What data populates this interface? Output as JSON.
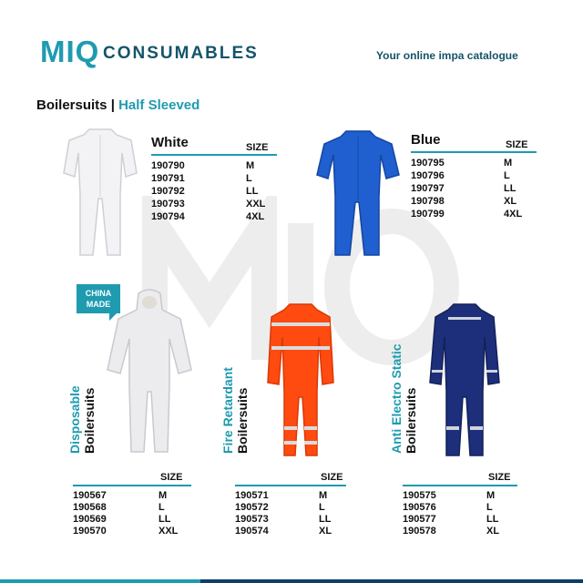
{
  "brand": {
    "logo_mark": "MIQ",
    "logo_text": "CONSUMABLES",
    "tagline": "Your online impa catalogue"
  },
  "heading": {
    "main": "Boilersuits",
    "separator": " | ",
    "sub": "Half Sleeved"
  },
  "white": {
    "title": "White",
    "size_header": "SIZE",
    "rows": [
      {
        "code": "190790",
        "size": "M"
      },
      {
        "code": "190791",
        "size": "L"
      },
      {
        "code": "190792",
        "size": "LL"
      },
      {
        "code": "190793",
        "size": "XXL"
      },
      {
        "code": "190794",
        "size": "4XL"
      }
    ]
  },
  "blue": {
    "title": "Blue",
    "size_header": "SIZE",
    "rows": [
      {
        "code": "190795",
        "size": "M"
      },
      {
        "code": "190796",
        "size": "L"
      },
      {
        "code": "190797",
        "size": "LL"
      },
      {
        "code": "190798",
        "size": "XL"
      },
      {
        "code": "190799",
        "size": "4XL"
      }
    ]
  },
  "disposable": {
    "label_top": "Disposable",
    "label_bottom": "Boilersuits",
    "badge_line1": "CHINA",
    "badge_line2": "MADE",
    "size_header": "SIZE",
    "rows": [
      {
        "code": "190567",
        "size": "M"
      },
      {
        "code": "190568",
        "size": "L"
      },
      {
        "code": "190569",
        "size": "LL"
      },
      {
        "code": "190570",
        "size": "XXL"
      }
    ]
  },
  "fire": {
    "label_top": "Fire Retardant",
    "label_bottom": "Boilersuits",
    "size_header": "SIZE",
    "rows": [
      {
        "code": "190571",
        "size": "M"
      },
      {
        "code": "190572",
        "size": "L"
      },
      {
        "code": "190573",
        "size": "LL"
      },
      {
        "code": "190574",
        "size": "XL"
      }
    ]
  },
  "antistatic": {
    "label_top": "Anti Electro Static",
    "label_bottom": "Boilersuits",
    "size_header": "SIZE",
    "rows": [
      {
        "code": "190575",
        "size": "M"
      },
      {
        "code": "190576",
        "size": "L"
      },
      {
        "code": "190577",
        "size": "LL"
      },
      {
        "code": "190578",
        "size": "XL"
      }
    ]
  },
  "colors": {
    "teal": "#1f9bb0",
    "navy": "#14546a",
    "blue_suit": "#1f5fd0",
    "orange_suit": "#ff4a10",
    "navy_suit": "#1d2f7a"
  }
}
